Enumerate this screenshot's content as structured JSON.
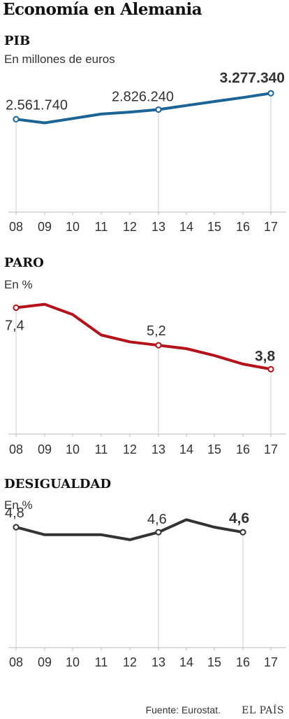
{
  "title": "Economía en Alemania",
  "source": "Fuente: Eurostat.",
  "brand": "EL PAÍS",
  "chart_data": [
    {
      "type": "line",
      "title": "PIB",
      "subtitle": "En millones de euros",
      "color": "#1a6496",
      "categories": [
        "08",
        "09",
        "10",
        "11",
        "12",
        "13",
        "14",
        "15",
        "16",
        "17"
      ],
      "values": [
        2561740,
        2460280,
        2580060,
        2703120,
        2758260,
        2826240,
        2938590,
        3048860,
        3159750,
        3277340
      ],
      "ylim": [
        0,
        3300000
      ],
      "labels": [
        {
          "index": 0,
          "text": "2.561.740",
          "bold": false
        },
        {
          "index": 5,
          "text": "2.826.240",
          "bold": false
        },
        {
          "index": 9,
          "text": "3.277.340",
          "bold": true
        }
      ],
      "markers": [
        0,
        5,
        9
      ]
    },
    {
      "type": "line",
      "title": "PARO",
      "subtitle": "En %",
      "color": "#b5121b",
      "categories": [
        "08",
        "09",
        "10",
        "11",
        "12",
        "13",
        "14",
        "15",
        "16",
        "17"
      ],
      "values": [
        7.4,
        7.6,
        7.0,
        5.8,
        5.4,
        5.2,
        5.0,
        4.6,
        4.1,
        3.8
      ],
      "ylim": [
        0,
        8.2
      ],
      "labels": [
        {
          "index": 0,
          "text": "7,4",
          "bold": false
        },
        {
          "index": 5,
          "text": "5,2",
          "bold": false
        },
        {
          "index": 9,
          "text": "3,8",
          "bold": true
        }
      ],
      "markers": [
        0,
        5,
        9
      ]
    },
    {
      "type": "line",
      "title": "DESIGUALDAD",
      "subtitle": "En %",
      "color": "#333333",
      "categories": [
        "08",
        "09",
        "10",
        "11",
        "12",
        "13",
        "14",
        "15",
        "16",
        "17"
      ],
      "values": [
        4.8,
        4.5,
        4.5,
        4.5,
        4.3,
        4.6,
        5.1,
        4.8,
        4.6,
        null
      ],
      "ylim": [
        0,
        6.0
      ],
      "labels": [
        {
          "index": 0,
          "text": "4,8",
          "bold": false
        },
        {
          "index": 5,
          "text": "4,6",
          "bold": false
        },
        {
          "index": 8,
          "text": "4,6",
          "bold": true
        }
      ],
      "markers": [
        0,
        5,
        8
      ]
    }
  ]
}
